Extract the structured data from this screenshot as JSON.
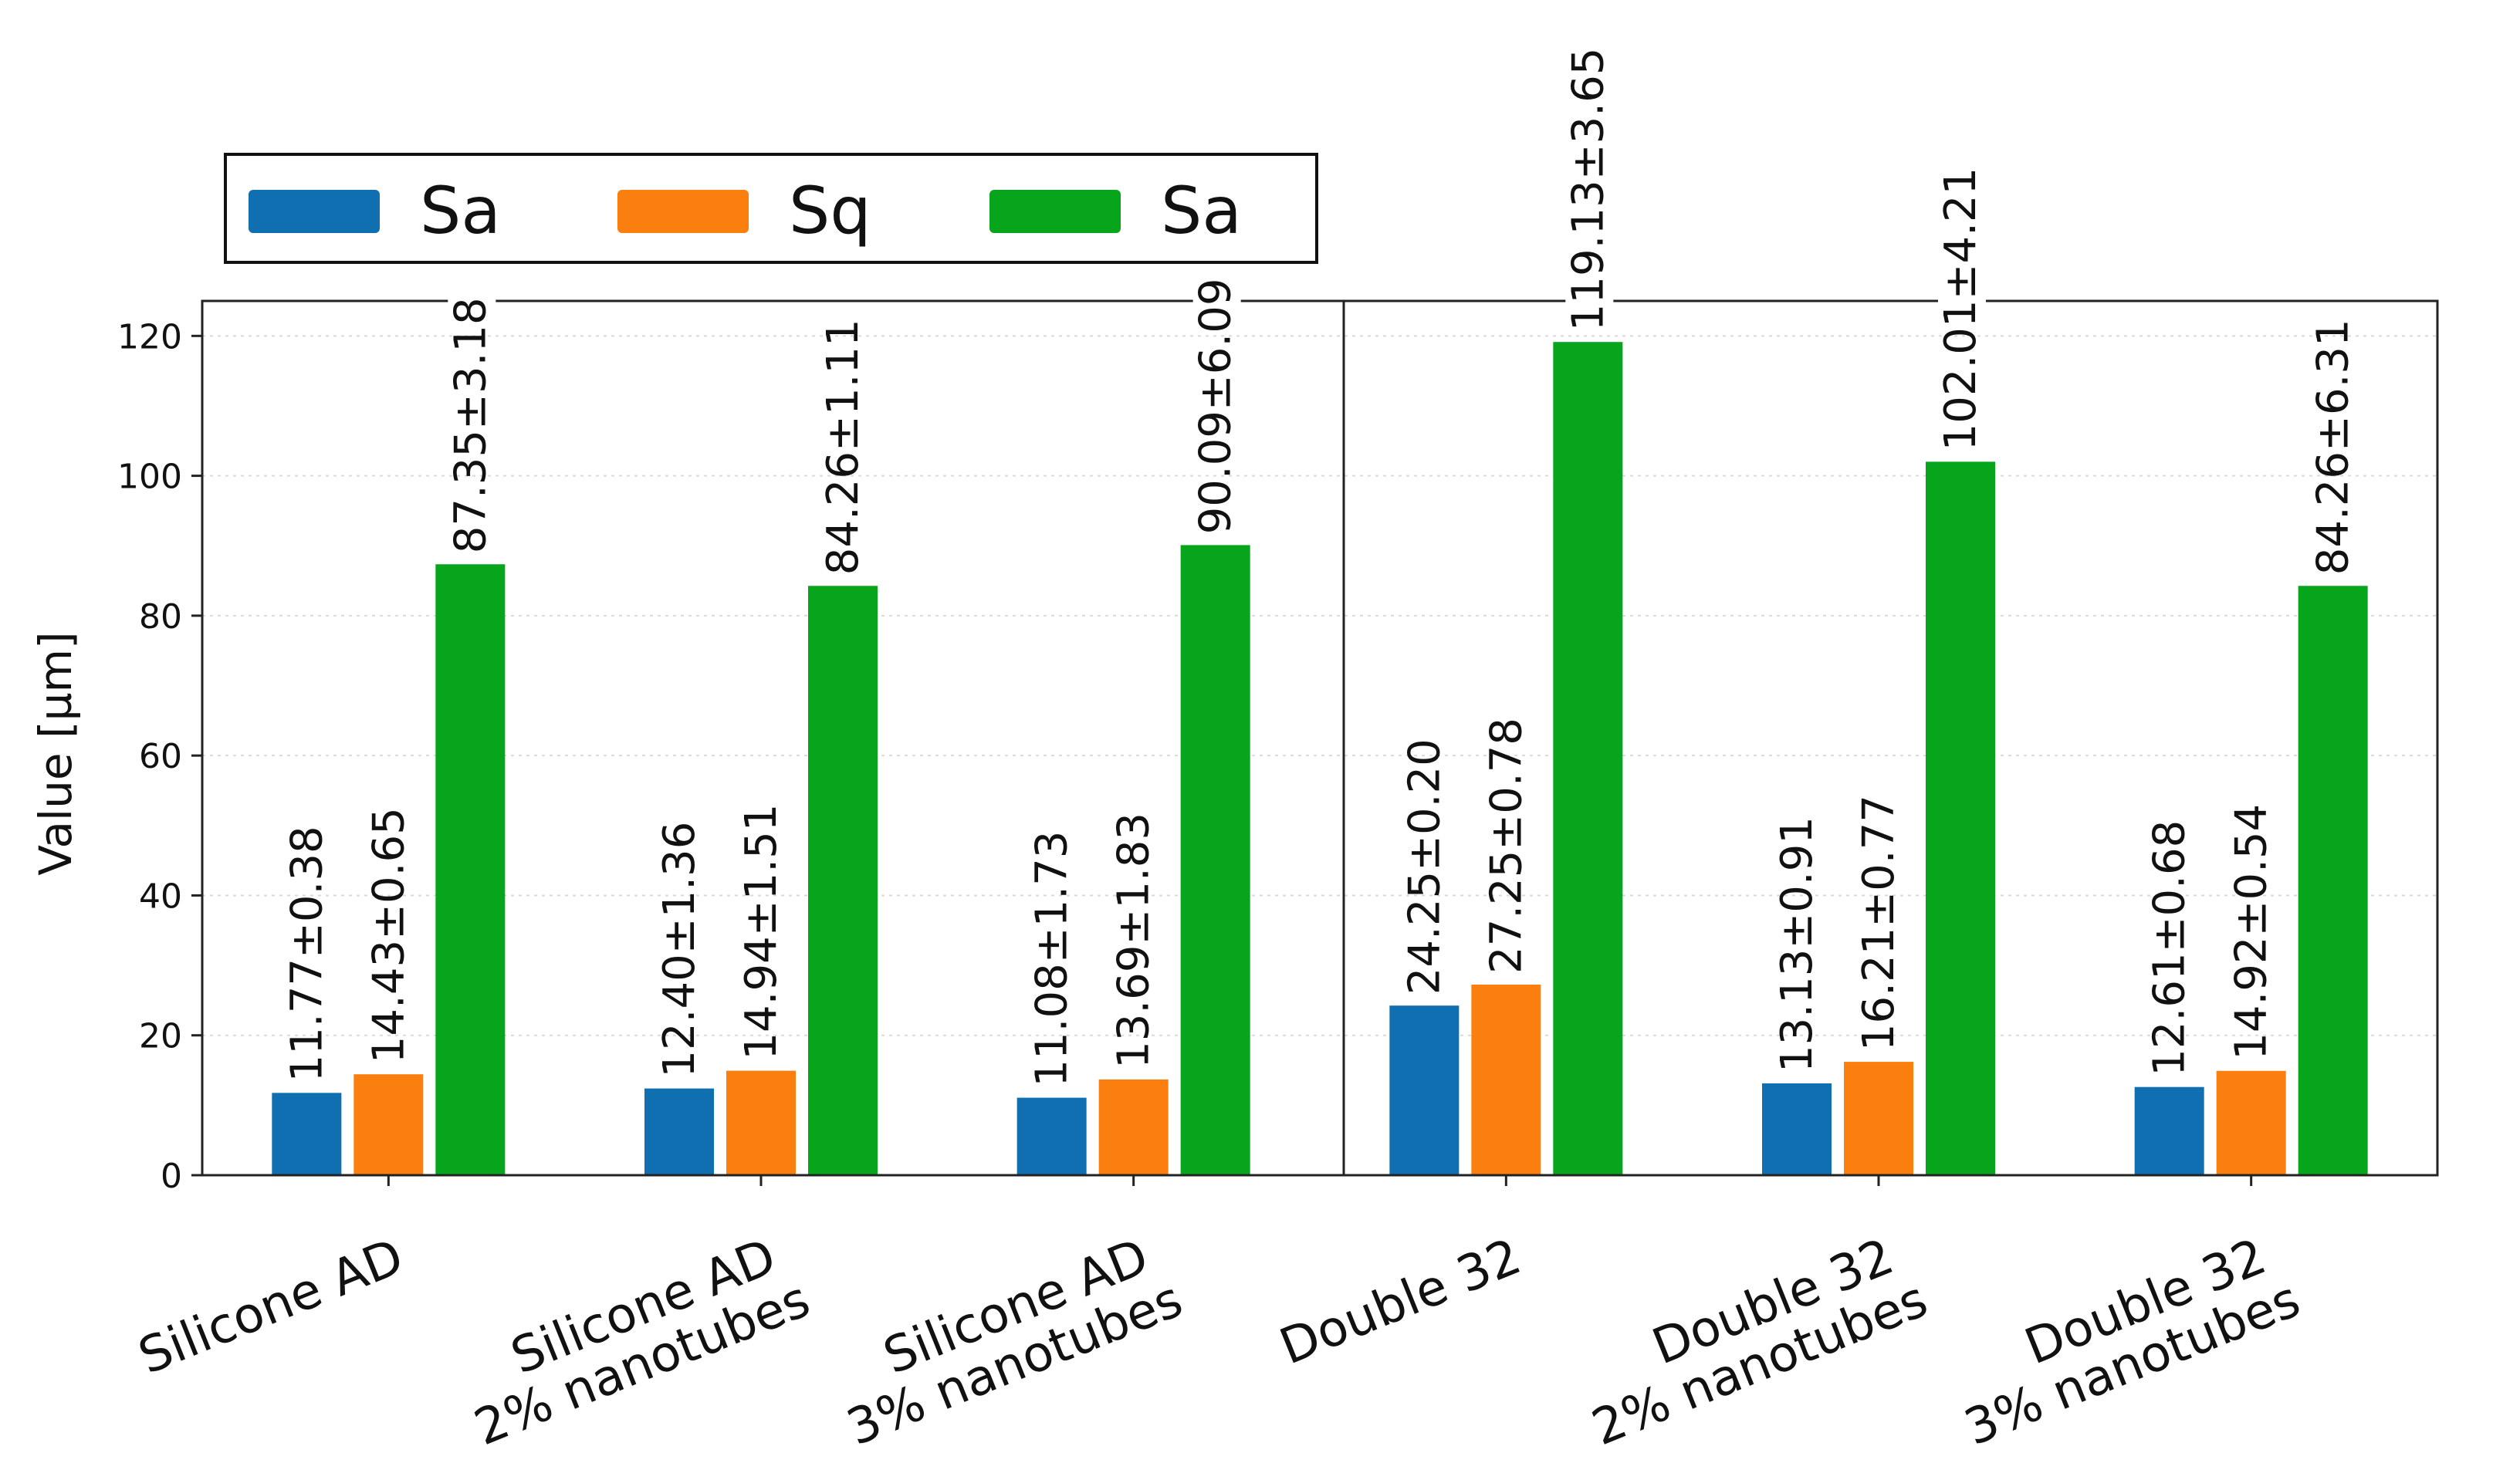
{
  "chart_data": {
    "type": "bar",
    "title": "",
    "xlabel": "",
    "ylabel": "Value [µm]",
    "ylim": [
      0,
      125
    ],
    "yticks": [
      0,
      20,
      40,
      60,
      80,
      100,
      120
    ],
    "grid": true,
    "legend_position": "top-left, above plot",
    "categories": [
      "Silicone AD",
      "Silicone AD\n2% nanotubes",
      "Silicone AD\n3% nanotubes",
      "Double 32",
      "Double 32\n2% nanotubes",
      "Double 32\n3% nanotubes"
    ],
    "series": [
      {
        "name": "Sa",
        "color": "#0f6fb0",
        "values": [
          11.77,
          12.4,
          11.08,
          24.25,
          13.13,
          12.61
        ],
        "labels": [
          "11.77±0.38",
          "12.40±1.36",
          "11.08±1.73",
          "24.25±0.20",
          "13.13±0.91",
          "12.61±0.68"
        ]
      },
      {
        "name": "Sq",
        "color": "#fb7f0e",
        "values": [
          14.43,
          14.94,
          13.69,
          27.25,
          16.21,
          14.92
        ],
        "labels": [
          "14.43±0.65",
          "14.94±1.51",
          "13.69±1.83",
          "27.25±0.78",
          "16.21±0.77",
          "14.92±0.54"
        ]
      },
      {
        "name": "Sa",
        "color": "#06a51c",
        "values": [
          87.35,
          84.26,
          90.09,
          119.13,
          102.01,
          84.26
        ],
        "labels": [
          "87.35±3.18",
          "84.26±1.11",
          "90.09±6.09",
          "119.13±3.65",
          "102.01±4.21",
          "84.26±6.31"
        ]
      }
    ]
  }
}
